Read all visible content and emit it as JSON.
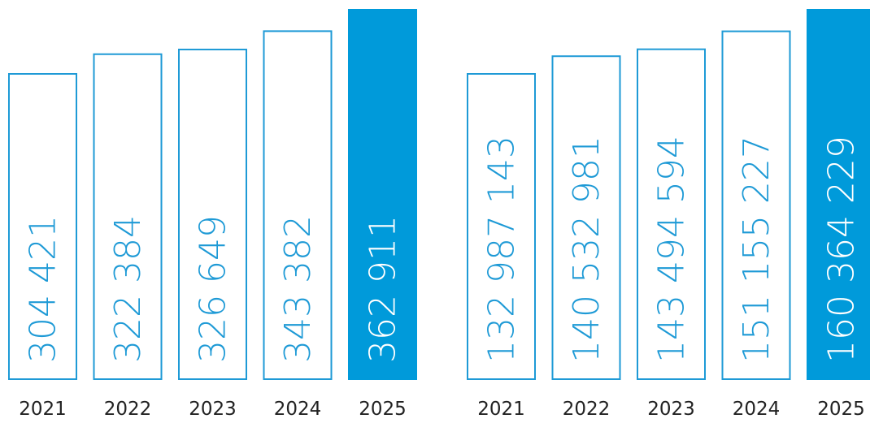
{
  "colors": {
    "accent": "#009ADA",
    "outline": "#1E9AD6",
    "tick_text": "#222222",
    "background": "#FFFFFF"
  },
  "chart_data": [
    {
      "type": "bar",
      "categories": [
        "2021",
        "2022",
        "2023",
        "2024",
        "2025"
      ],
      "values": [
        304421,
        322384,
        326649,
        343382,
        362911
      ],
      "value_labels": [
        "304 421",
        "322 384",
        "326 649",
        "343 382",
        "362 911"
      ],
      "highlighted_index": 4,
      "title": "",
      "xlabel": "",
      "ylabel": "",
      "grid": false,
      "legend": "none"
    },
    {
      "type": "bar",
      "categories": [
        "2021",
        "2022",
        "2023",
        "2024",
        "2025"
      ],
      "values": [
        132987143,
        140532981,
        143494594,
        151155227,
        160364229
      ],
      "value_labels": [
        "132 987 143",
        "140 532 981",
        "143 494 594",
        "151 155 227",
        "160 364 229"
      ],
      "highlighted_index": 4,
      "title": "",
      "xlabel": "",
      "ylabel": "",
      "grid": false,
      "legend": "none"
    }
  ]
}
